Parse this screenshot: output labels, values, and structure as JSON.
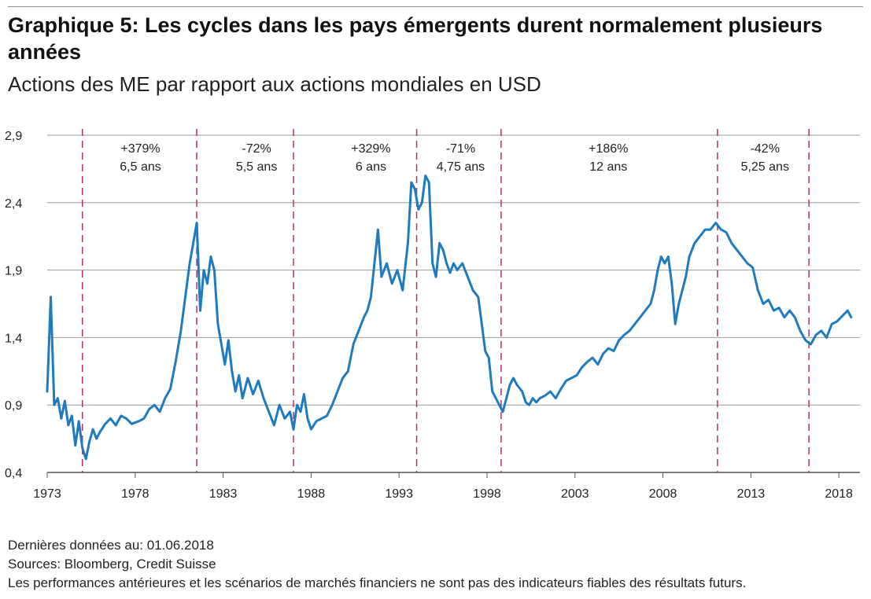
{
  "header": {
    "title": "Graphique 5: Les cycles dans les pays émergents durent normalement plusieurs années",
    "subtitle": "Actions des ME par rapport aux actions mondiales en USD"
  },
  "footer": {
    "last_data": "Dernières données au: 01.06.2018",
    "sources": "Sources: Bloomberg, Credit Suisse",
    "disclaimer": "Les performances antérieures et les scénarios de marchés financiers ne sont pas des indicateurs fiables des résultats futurs."
  },
  "colors": {
    "series": "#1f7bbf",
    "divider": "#b0306e",
    "grid": "#9a9a9a"
  },
  "chart_data": {
    "type": "line",
    "title": "",
    "xlabel": "",
    "ylabel": "",
    "xlim": [
      1973,
      2019.2
    ],
    "ylim": [
      0.4,
      2.9
    ],
    "y_ticks": [
      0.4,
      0.9,
      1.4,
      1.9,
      2.4,
      2.9
    ],
    "y_tick_labels": [
      "0,4",
      "0,9",
      "1,4",
      "1,9",
      "2,4",
      "2,9"
    ],
    "x_ticks": [
      1973,
      1978,
      1983,
      1988,
      1993,
      1998,
      2003,
      2008,
      2013,
      2018
    ],
    "x_tick_labels": [
      "1973",
      "1978",
      "1983",
      "1988",
      "1993",
      "1998",
      "2003",
      "2008",
      "2013",
      "2018"
    ],
    "grid": "horizontal",
    "cycle_boundaries": [
      1975.0,
      1981.5,
      1987.0,
      1994.0,
      1998.8,
      2011.1,
      2016.3
    ],
    "cycles": [
      {
        "change": "+379%",
        "duration": "6,5 ans",
        "x": 1978.3
      },
      {
        "change": "-72%",
        "duration": "5,5 ans",
        "x": 1984.9
      },
      {
        "change": "+329%",
        "duration": "6 ans",
        "x": 1991.4
      },
      {
        "change": "-71%",
        "duration": "4,75 ans",
        "x": 1996.5
      },
      {
        "change": "+186%",
        "duration": "12 ans",
        "x": 2004.9
      },
      {
        "change": "-42%",
        "duration": "5,25 ans",
        "x": 2013.8
      }
    ],
    "series": [
      {
        "values": [
          [
            1973.0,
            1.0
          ],
          [
            1973.2,
            1.7
          ],
          [
            1973.4,
            0.9
          ],
          [
            1973.6,
            0.95
          ],
          [
            1973.8,
            0.8
          ],
          [
            1974.0,
            0.93
          ],
          [
            1974.2,
            0.75
          ],
          [
            1974.4,
            0.82
          ],
          [
            1974.6,
            0.6
          ],
          [
            1974.8,
            0.78
          ],
          [
            1975.0,
            0.58
          ],
          [
            1975.2,
            0.5
          ],
          [
            1975.4,
            0.63
          ],
          [
            1975.6,
            0.72
          ],
          [
            1975.8,
            0.65
          ],
          [
            1976.0,
            0.7
          ],
          [
            1976.3,
            0.76
          ],
          [
            1976.6,
            0.8
          ],
          [
            1976.9,
            0.75
          ],
          [
            1977.2,
            0.82
          ],
          [
            1977.5,
            0.8
          ],
          [
            1977.8,
            0.76
          ],
          [
            1978.2,
            0.78
          ],
          [
            1978.5,
            0.8
          ],
          [
            1978.8,
            0.87
          ],
          [
            1979.1,
            0.9
          ],
          [
            1979.4,
            0.85
          ],
          [
            1979.7,
            0.95
          ],
          [
            1980.0,
            1.02
          ],
          [
            1980.3,
            1.22
          ],
          [
            1980.6,
            1.45
          ],
          [
            1980.9,
            1.75
          ],
          [
            1981.1,
            1.95
          ],
          [
            1981.3,
            2.1
          ],
          [
            1981.5,
            2.25
          ],
          [
            1981.7,
            1.6
          ],
          [
            1981.9,
            1.9
          ],
          [
            1982.1,
            1.8
          ],
          [
            1982.3,
            2.0
          ],
          [
            1982.5,
            1.9
          ],
          [
            1982.7,
            1.5
          ],
          [
            1982.9,
            1.35
          ],
          [
            1983.1,
            1.2
          ],
          [
            1983.3,
            1.38
          ],
          [
            1983.5,
            1.15
          ],
          [
            1983.7,
            1.0
          ],
          [
            1983.9,
            1.12
          ],
          [
            1984.1,
            0.95
          ],
          [
            1984.4,
            1.1
          ],
          [
            1984.7,
            0.98
          ],
          [
            1985.0,
            1.08
          ],
          [
            1985.3,
            0.95
          ],
          [
            1985.6,
            0.85
          ],
          [
            1985.9,
            0.75
          ],
          [
            1986.2,
            0.9
          ],
          [
            1986.5,
            0.8
          ],
          [
            1986.8,
            0.85
          ],
          [
            1987.0,
            0.72
          ],
          [
            1987.2,
            0.9
          ],
          [
            1987.4,
            0.85
          ],
          [
            1987.6,
            0.98
          ],
          [
            1987.8,
            0.8
          ],
          [
            1988.0,
            0.72
          ],
          [
            1988.3,
            0.78
          ],
          [
            1988.6,
            0.8
          ],
          [
            1988.9,
            0.82
          ],
          [
            1989.2,
            0.9
          ],
          [
            1989.5,
            1.0
          ],
          [
            1989.8,
            1.1
          ],
          [
            1990.1,
            1.15
          ],
          [
            1990.4,
            1.35
          ],
          [
            1990.7,
            1.45
          ],
          [
            1991.0,
            1.55
          ],
          [
            1991.2,
            1.6
          ],
          [
            1991.4,
            1.7
          ],
          [
            1991.6,
            1.95
          ],
          [
            1991.8,
            2.2
          ],
          [
            1992.0,
            1.85
          ],
          [
            1992.3,
            1.95
          ],
          [
            1992.6,
            1.8
          ],
          [
            1992.9,
            1.9
          ],
          [
            1993.2,
            1.75
          ],
          [
            1993.5,
            2.1
          ],
          [
            1993.7,
            2.55
          ],
          [
            1993.9,
            2.5
          ],
          [
            1994.1,
            2.35
          ],
          [
            1994.3,
            2.4
          ],
          [
            1994.5,
            2.6
          ],
          [
            1994.7,
            2.55
          ],
          [
            1994.9,
            1.95
          ],
          [
            1995.1,
            1.85
          ],
          [
            1995.3,
            2.1
          ],
          [
            1995.5,
            2.05
          ],
          [
            1995.7,
            1.95
          ],
          [
            1995.9,
            1.88
          ],
          [
            1996.1,
            1.95
          ],
          [
            1996.3,
            1.9
          ],
          [
            1996.6,
            1.95
          ],
          [
            1996.9,
            1.85
          ],
          [
            1997.2,
            1.75
          ],
          [
            1997.5,
            1.7
          ],
          [
            1997.7,
            1.5
          ],
          [
            1997.9,
            1.3
          ],
          [
            1998.1,
            1.25
          ],
          [
            1998.3,
            1.0
          ],
          [
            1998.5,
            0.95
          ],
          [
            1998.7,
            0.9
          ],
          [
            1998.9,
            0.85
          ],
          [
            1999.1,
            0.95
          ],
          [
            1999.3,
            1.05
          ],
          [
            1999.5,
            1.1
          ],
          [
            1999.7,
            1.05
          ],
          [
            2000.0,
            1.0
          ],
          [
            2000.2,
            0.92
          ],
          [
            2000.4,
            0.9
          ],
          [
            2000.6,
            0.95
          ],
          [
            2000.8,
            0.92
          ],
          [
            2001.0,
            0.95
          ],
          [
            2001.3,
            0.97
          ],
          [
            2001.6,
            1.0
          ],
          [
            2001.9,
            0.95
          ],
          [
            2002.2,
            1.02
          ],
          [
            2002.5,
            1.08
          ],
          [
            2002.8,
            1.1
          ],
          [
            2003.1,
            1.12
          ],
          [
            2003.4,
            1.18
          ],
          [
            2003.7,
            1.22
          ],
          [
            2004.0,
            1.25
          ],
          [
            2004.3,
            1.2
          ],
          [
            2004.6,
            1.28
          ],
          [
            2004.9,
            1.32
          ],
          [
            2005.2,
            1.3
          ],
          [
            2005.5,
            1.38
          ],
          [
            2005.8,
            1.42
          ],
          [
            2006.1,
            1.45
          ],
          [
            2006.4,
            1.5
          ],
          [
            2006.7,
            1.55
          ],
          [
            2007.0,
            1.6
          ],
          [
            2007.3,
            1.65
          ],
          [
            2007.5,
            1.75
          ],
          [
            2007.7,
            1.9
          ],
          [
            2007.9,
            2.0
          ],
          [
            2008.1,
            1.95
          ],
          [
            2008.3,
            2.0
          ],
          [
            2008.5,
            1.8
          ],
          [
            2008.7,
            1.5
          ],
          [
            2008.9,
            1.65
          ],
          [
            2009.1,
            1.75
          ],
          [
            2009.3,
            1.85
          ],
          [
            2009.5,
            2.0
          ],
          [
            2009.8,
            2.1
          ],
          [
            2010.1,
            2.15
          ],
          [
            2010.4,
            2.2
          ],
          [
            2010.7,
            2.2
          ],
          [
            2011.0,
            2.25
          ],
          [
            2011.3,
            2.2
          ],
          [
            2011.6,
            2.18
          ],
          [
            2011.9,
            2.1
          ],
          [
            2012.2,
            2.05
          ],
          [
            2012.5,
            2.0
          ],
          [
            2012.8,
            1.95
          ],
          [
            2013.1,
            1.92
          ],
          [
            2013.4,
            1.75
          ],
          [
            2013.7,
            1.65
          ],
          [
            2014.0,
            1.68
          ],
          [
            2014.3,
            1.6
          ],
          [
            2014.6,
            1.62
          ],
          [
            2014.9,
            1.55
          ],
          [
            2015.2,
            1.6
          ],
          [
            2015.5,
            1.55
          ],
          [
            2015.8,
            1.45
          ],
          [
            2016.1,
            1.38
          ],
          [
            2016.4,
            1.35
          ],
          [
            2016.7,
            1.42
          ],
          [
            2017.0,
            1.45
          ],
          [
            2017.3,
            1.4
          ],
          [
            2017.6,
            1.5
          ],
          [
            2017.9,
            1.52
          ],
          [
            2018.2,
            1.56
          ],
          [
            2018.5,
            1.6
          ],
          [
            2018.7,
            1.55
          ]
        ]
      }
    ]
  }
}
